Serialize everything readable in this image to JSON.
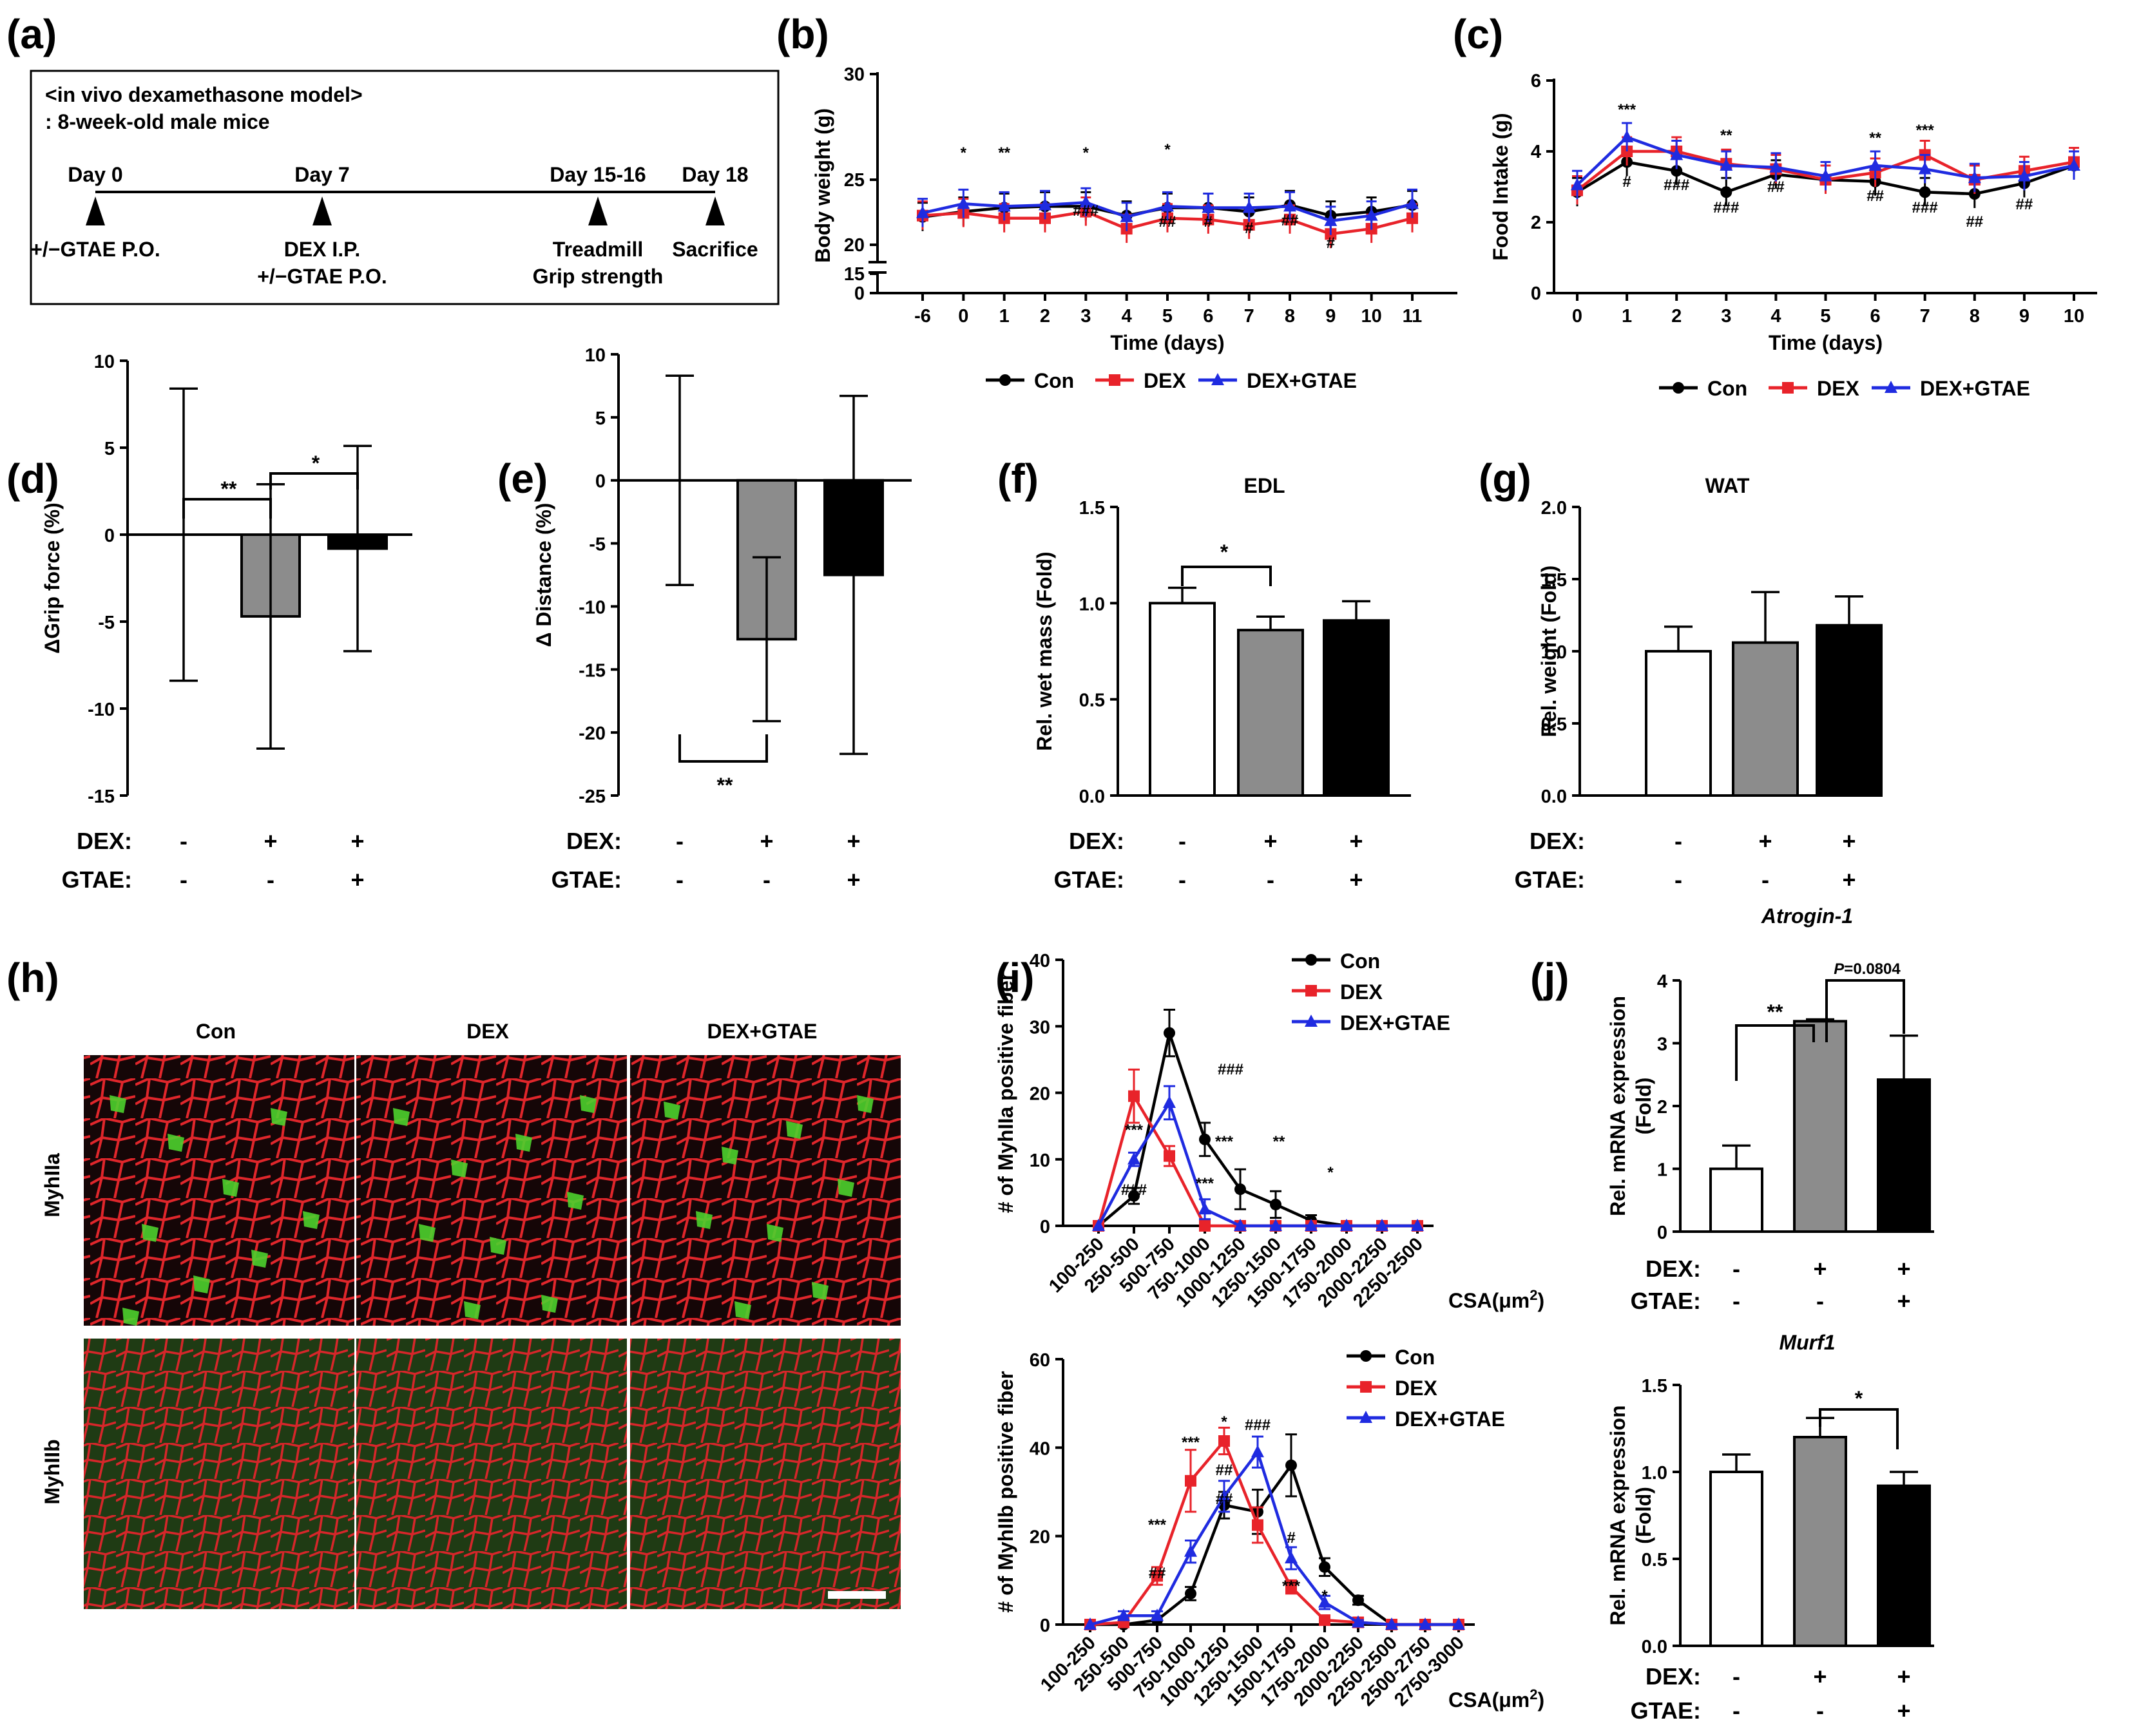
{
  "colors": {
    "con": "#000000",
    "dex": "#e8232a",
    "gtae": "#1f2be0",
    "bar_con": "#ffffff",
    "bar_dex": "#8c8c8c",
    "bar_gtae": "#000000"
  },
  "panel_labels": [
    "(a)",
    "(b)",
    "(c)",
    "(d)",
    "(e)",
    "(f)",
    "(g)",
    "(h)",
    "(i)",
    "(j)"
  ],
  "panel_a": {
    "title_line1": "<in vivo dexamethasone model>",
    "title_line2": ": 8-week-old male mice",
    "days": [
      "Day 0",
      "Day 7",
      "Day 15-16",
      "Day 18"
    ],
    "events": [
      "+/−GTAE P.O.",
      "DEX I.P.",
      "+/−GTAE P.O.",
      "Treadmill",
      "Grip strength",
      "Sacrifice"
    ]
  },
  "legend": [
    "Con",
    "DEX",
    "DEX+GTAE"
  ],
  "cond_labels": {
    "dex": "DEX:",
    "gtae": "GTAE:"
  },
  "group_signs": {
    "dex": [
      "-",
      "+",
      "+"
    ],
    "gtae": [
      "-",
      "-",
      "+"
    ]
  },
  "panel_h": {
    "columns": [
      "Con",
      "DEX",
      "DEX+GTAE"
    ],
    "rows": [
      "MyhIIa",
      "MyhIIb"
    ]
  },
  "chart_data": [
    {
      "panel": "b",
      "type": "line",
      "xlabel": "Time (days)",
      "ylabel": "Body weight (g)",
      "categories": [
        "-6",
        "0",
        "1",
        "2",
        "3",
        "4",
        "5",
        "6",
        "7",
        "8",
        "9",
        "10",
        "11"
      ],
      "yticks": [
        "0",
        "15",
        "20",
        "25",
        "30"
      ],
      "series": [
        {
          "name": "Con",
          "values": [
            23.2,
            23.6,
            23.9,
            24.0,
            24.0,
            23.3,
            23.9,
            23.9,
            23.6,
            24.1,
            23.3,
            23.6,
            24.1
          ]
        },
        {
          "name": "DEX",
          "values": [
            23.3,
            23.5,
            23.1,
            23.1,
            23.6,
            22.3,
            23.1,
            23.0,
            22.6,
            23.0,
            21.9,
            22.3,
            23.1
          ]
        },
        {
          "name": "DEX+GTAE",
          "values": [
            23.5,
            24.2,
            24.0,
            24.1,
            24.3,
            23.2,
            24.0,
            23.9,
            23.9,
            24.0,
            22.9,
            23.3,
            24.2
          ]
        }
      ],
      "annotations": [
        {
          "x": "0",
          "text": "*"
        },
        {
          "x": "1",
          "text": "**"
        },
        {
          "x": "3",
          "text": "*"
        },
        {
          "x": "3",
          "text": "###"
        },
        {
          "x": "5",
          "text": "*"
        },
        {
          "x": "5",
          "text": "##"
        },
        {
          "x": "6",
          "text": "#"
        },
        {
          "x": "7",
          "text": "#"
        },
        {
          "x": "8",
          "text": "##"
        },
        {
          "x": "9",
          "text": "#"
        }
      ]
    },
    {
      "panel": "c",
      "type": "line",
      "xlabel": "Time (days)",
      "ylabel": "Food Intake (g)",
      "categories": [
        "0",
        "1",
        "2",
        "3",
        "4",
        "5",
        "6",
        "7",
        "8",
        "9",
        "10"
      ],
      "ylim": [
        0,
        6
      ],
      "yticks": [
        "0",
        "2",
        "4",
        "6"
      ],
      "series": [
        {
          "name": "Con",
          "values": [
            2.85,
            3.7,
            3.45,
            2.85,
            3.35,
            3.2,
            3.15,
            2.85,
            2.8,
            3.1,
            3.6
          ]
        },
        {
          "name": "DEX",
          "values": [
            2.9,
            4.0,
            4.0,
            3.65,
            3.5,
            3.2,
            3.4,
            3.9,
            3.2,
            3.45,
            3.7
          ]
        },
        {
          "name": "DEX+GTAE",
          "values": [
            3.05,
            4.4,
            3.9,
            3.6,
            3.55,
            3.3,
            3.6,
            3.5,
            3.25,
            3.3,
            3.6
          ]
        }
      ],
      "annotations": [
        {
          "x": "1",
          "text": "***"
        },
        {
          "x": "1",
          "text": "#"
        },
        {
          "x": "2",
          "text": "###"
        },
        {
          "x": "3",
          "text": "**"
        },
        {
          "x": "3",
          "text": "###"
        },
        {
          "x": "4",
          "text": "##"
        },
        {
          "x": "6",
          "text": "**"
        },
        {
          "x": "6",
          "text": "##"
        },
        {
          "x": "7",
          "text": "***"
        },
        {
          "x": "7",
          "text": "###"
        },
        {
          "x": "8",
          "text": "##"
        },
        {
          "x": "9",
          "text": "##"
        }
      ]
    },
    {
      "panel": "d",
      "type": "bar",
      "ylabel": "ΔGrip force (%)",
      "ylim": [
        -15,
        10
      ],
      "yticks": [
        "10",
        "5",
        "0",
        "-5",
        "-10",
        "-15"
      ],
      "values": [
        0,
        -4.7,
        -0.8
      ],
      "errors": [
        8.4,
        7.6,
        5.9
      ],
      "significance": [
        {
          "text": "**"
        },
        {
          "text": "*"
        }
      ]
    },
    {
      "panel": "e",
      "type": "bar",
      "ylabel": "Δ Distance (%)",
      "ylim": [
        -25,
        10
      ],
      "yticks": [
        "10",
        "5",
        "0",
        "-5",
        "-10",
        "-15",
        "-20",
        "-25"
      ],
      "values": [
        0,
        -12.6,
        -7.5
      ],
      "errors": [
        8.3,
        6.5,
        14.2
      ],
      "significance": [
        {
          "text": "**"
        }
      ]
    },
    {
      "panel": "f",
      "type": "bar",
      "title": "EDL",
      "ylabel": "Rel. wet mass (Fold)",
      "ylim": [
        0,
        1.5
      ],
      "yticks": [
        "0.0",
        "0.5",
        "1.0",
        "1.5"
      ],
      "values": [
        1.0,
        0.86,
        0.91
      ],
      "errors": [
        0.08,
        0.07,
        0.1
      ],
      "significance": [
        {
          "text": "*"
        }
      ]
    },
    {
      "panel": "g",
      "type": "bar",
      "title": "WAT",
      "ylabel": "Rel. weight (Fold)",
      "ylim": [
        0,
        2.0
      ],
      "yticks": [
        "0.0",
        "0.5",
        "1.0",
        "1.5",
        "2.0"
      ],
      "values": [
        1.0,
        1.06,
        1.18
      ],
      "errors": [
        0.17,
        0.35,
        0.2
      ]
    },
    {
      "panel": "i-top",
      "type": "line",
      "ylabel": "# of MyhIIa positive fiber",
      "xlabel_main": "CSA(",
      "xlabel_mu": "μ",
      "xlabel_rest": "m",
      "xlabel_sup": "2",
      "xlabel_close": ")",
      "categories": [
        "100-250",
        "250-500",
        "500-750",
        "750-1000",
        "1000-1250",
        "1250-1500",
        "1500-1750",
        "1750-2000",
        "2000-2250",
        "2250-2500"
      ],
      "ylim": [
        0,
        40
      ],
      "yticks": [
        "0",
        "10",
        "20",
        "30",
        "40"
      ],
      "series": [
        {
          "name": "Con",
          "values": [
            0,
            4.5,
            29,
            13,
            5.5,
            3.2,
            0.8,
            0,
            0,
            0
          ],
          "errors": [
            0,
            1.2,
            3.5,
            2.5,
            3,
            2,
            0.8,
            0,
            0,
            0
          ]
        },
        {
          "name": "DEX",
          "values": [
            0,
            19.5,
            10.5,
            0,
            0,
            0,
            0,
            0,
            0,
            0
          ],
          "errors": [
            0,
            4,
            1.5,
            0,
            0,
            0,
            0,
            0,
            0,
            0
          ]
        },
        {
          "name": "DEX+GTAE",
          "values": [
            0,
            10,
            18.5,
            2.5,
            0,
            0,
            0,
            0,
            0,
            0
          ],
          "errors": [
            0,
            1,
            2.5,
            1.5,
            0,
            0,
            0,
            0,
            0,
            0
          ]
        }
      ],
      "annotations": [
        {
          "text": "***"
        },
        {
          "text": "###"
        },
        {
          "text": "###"
        },
        {
          "text": "***"
        },
        {
          "text": "***"
        },
        {
          "text": "**"
        },
        {
          "text": "*"
        }
      ]
    },
    {
      "panel": "i-bottom",
      "type": "line",
      "ylabel": "# of MyhIIb positive fiber",
      "categories": [
        "100-250",
        "250-500",
        "500-750",
        "750-1000",
        "1000-1250",
        "1250-1500",
        "1500-1750",
        "1750-2000",
        "2000-2250",
        "2250-2500",
        "2500-2750",
        "2750-3000"
      ],
      "ylim": [
        0,
        60
      ],
      "yticks": [
        "0",
        "20",
        "40",
        "60"
      ],
      "series": [
        {
          "name": "Con",
          "values": [
            0,
            0,
            1,
            7,
            27,
            25.5,
            36,
            13,
            5.5,
            0,
            0,
            0
          ],
          "errors": [
            0,
            0,
            1,
            1.5,
            3,
            5,
            7,
            2,
            1,
            0,
            0,
            0
          ]
        },
        {
          "name": "DEX",
          "values": [
            0,
            0.5,
            11,
            32.5,
            41.5,
            22.5,
            8.5,
            1,
            0.5,
            0,
            0,
            0
          ],
          "errors": [
            0,
            0.5,
            2,
            7,
            3,
            4,
            1.5,
            0.5,
            0.5,
            0,
            0,
            0
          ]
        },
        {
          "name": "DEX+GTAE",
          "values": [
            0,
            2,
            2,
            16.5,
            29,
            39,
            15,
            5,
            0.5,
            0,
            0,
            0
          ],
          "errors": [
            0,
            1,
            1,
            2.5,
            3.5,
            3.5,
            2.5,
            1.5,
            0.5,
            0,
            0,
            0
          ]
        }
      ],
      "annotations": [
        {
          "text": "***"
        },
        {
          "text": "##"
        },
        {
          "text": "***"
        },
        {
          "text": "##"
        },
        {
          "text": "*"
        },
        {
          "text": "##"
        },
        {
          "text": "###"
        },
        {
          "text": "#"
        },
        {
          "text": "***"
        },
        {
          "text": "*"
        }
      ]
    },
    {
      "panel": "j-top",
      "type": "bar",
      "title": "Atrogin-1",
      "ylabel_line1": "Rel. mRNA expression",
      "ylabel_line2": "(Fold)",
      "ylim": [
        0,
        4
      ],
      "yticks": [
        "0",
        "1",
        "2",
        "3",
        "4"
      ],
      "values": [
        1.0,
        3.35,
        2.42
      ],
      "errors": [
        0.37,
        0.03,
        0.7
      ],
      "significance": [
        {
          "text": "**"
        },
        {
          "text_italic": "P",
          "text": "=0.0804"
        }
      ]
    },
    {
      "panel": "j-bottom",
      "type": "bar",
      "title": "Murf1",
      "ylabel_line1": "Rel. mRNA expression",
      "ylabel_line2": "(Fold)",
      "ylim": [
        0,
        1.5
      ],
      "yticks": [
        "0.0",
        "0.5",
        "1.0",
        "1.5"
      ],
      "values": [
        1.0,
        1.2,
        0.92
      ],
      "errors": [
        0.1,
        0.11,
        0.08
      ],
      "significance": [
        {
          "text": "*"
        }
      ]
    }
  ]
}
